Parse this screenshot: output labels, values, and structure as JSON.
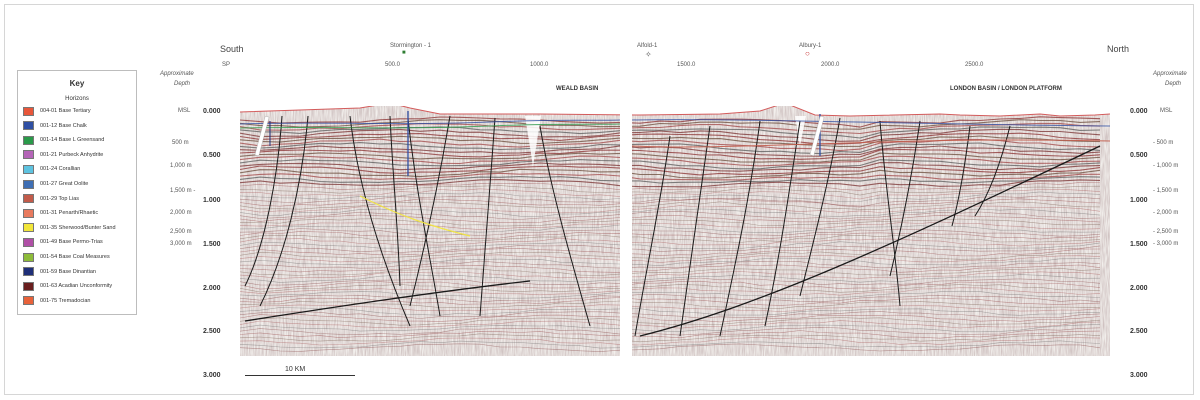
{
  "direction": {
    "left": "South",
    "right": "North"
  },
  "wells": [
    {
      "name": "Stormington - 1",
      "marker": "■",
      "color": "#2e7d32"
    },
    {
      "name": "Alfold-1",
      "marker": "✧",
      "color": "#555555"
    },
    {
      "name": "Albury-1",
      "marker": "○",
      "color": "#c62828"
    }
  ],
  "sp_axis": {
    "label": "SP",
    "ticks": [
      "500.0",
      "1000.0",
      "1500.0",
      "2000.0",
      "2500.0"
    ]
  },
  "left_axis": {
    "title_line1": "Approximate",
    "title_line2": "Depth",
    "depth_ticks": [
      "MSL",
      "500 m",
      "1,000 m",
      "1,500 m -",
      "2,000 m",
      "2,500 m",
      "3,000 m"
    ]
  },
  "right_axis": {
    "title_line1": "Approximate",
    "title_line2": "Depth",
    "depth_ticks": [
      "MSL",
      "- 500 m",
      "- 1,000 m",
      "- 1,500 m",
      "- 2,000 m",
      "- 2,500 m",
      "- 3,000 m"
    ]
  },
  "time_ticks_left": [
    "0.000",
    "0.500",
    "1.000",
    "1.500",
    "2.000",
    "2.500",
    "3.000"
  ],
  "time_ticks_right": [
    "0.000",
    "0.500",
    "1.000",
    "1.500",
    "2.000",
    "2.500",
    "3.000"
  ],
  "basins": {
    "left": "WEALD BASIN",
    "right": "LONDON BASIN / LONDON PLATFORM"
  },
  "key": {
    "title": "Key",
    "subtitle": "Horizons",
    "items": [
      {
        "label": "004-01 Base Tertiary",
        "color": "#e8563a"
      },
      {
        "label": "001-12 Base Chalk",
        "color": "#2f4fa3"
      },
      {
        "label": "001-14 Base L Greensand",
        "color": "#2a9a4a"
      },
      {
        "label": "001-21 Purbeck Anhydrite",
        "color": "#b565b8"
      },
      {
        "label": "001-24 Corallian",
        "color": "#5ec3e0"
      },
      {
        "label": "001-27 Great Oolite",
        "color": "#3f6fb5"
      },
      {
        "label": "001-29 Top Lias",
        "color": "#c25b4a"
      },
      {
        "label": "001-31 Penarth/Rhaetic",
        "color": "#e87a5e"
      },
      {
        "label": "001-35 Sherwood/Bunter Sand",
        "color": "#f2e63a"
      },
      {
        "label": "001-49 Base Permo-Trias",
        "color": "#b04fa6"
      },
      {
        "label": "001-54 Base Coal Measures",
        "color": "#8ebc3a"
      },
      {
        "label": "001-59 Base Dinantian",
        "color": "#1f2f78"
      },
      {
        "label": "001-63 Acadian Unconformity",
        "color": "#6a1f1f"
      },
      {
        "label": "001-75 Tremadocian",
        "color": "#e8623a"
      }
    ]
  },
  "scale": {
    "label": "10 KM"
  }
}
